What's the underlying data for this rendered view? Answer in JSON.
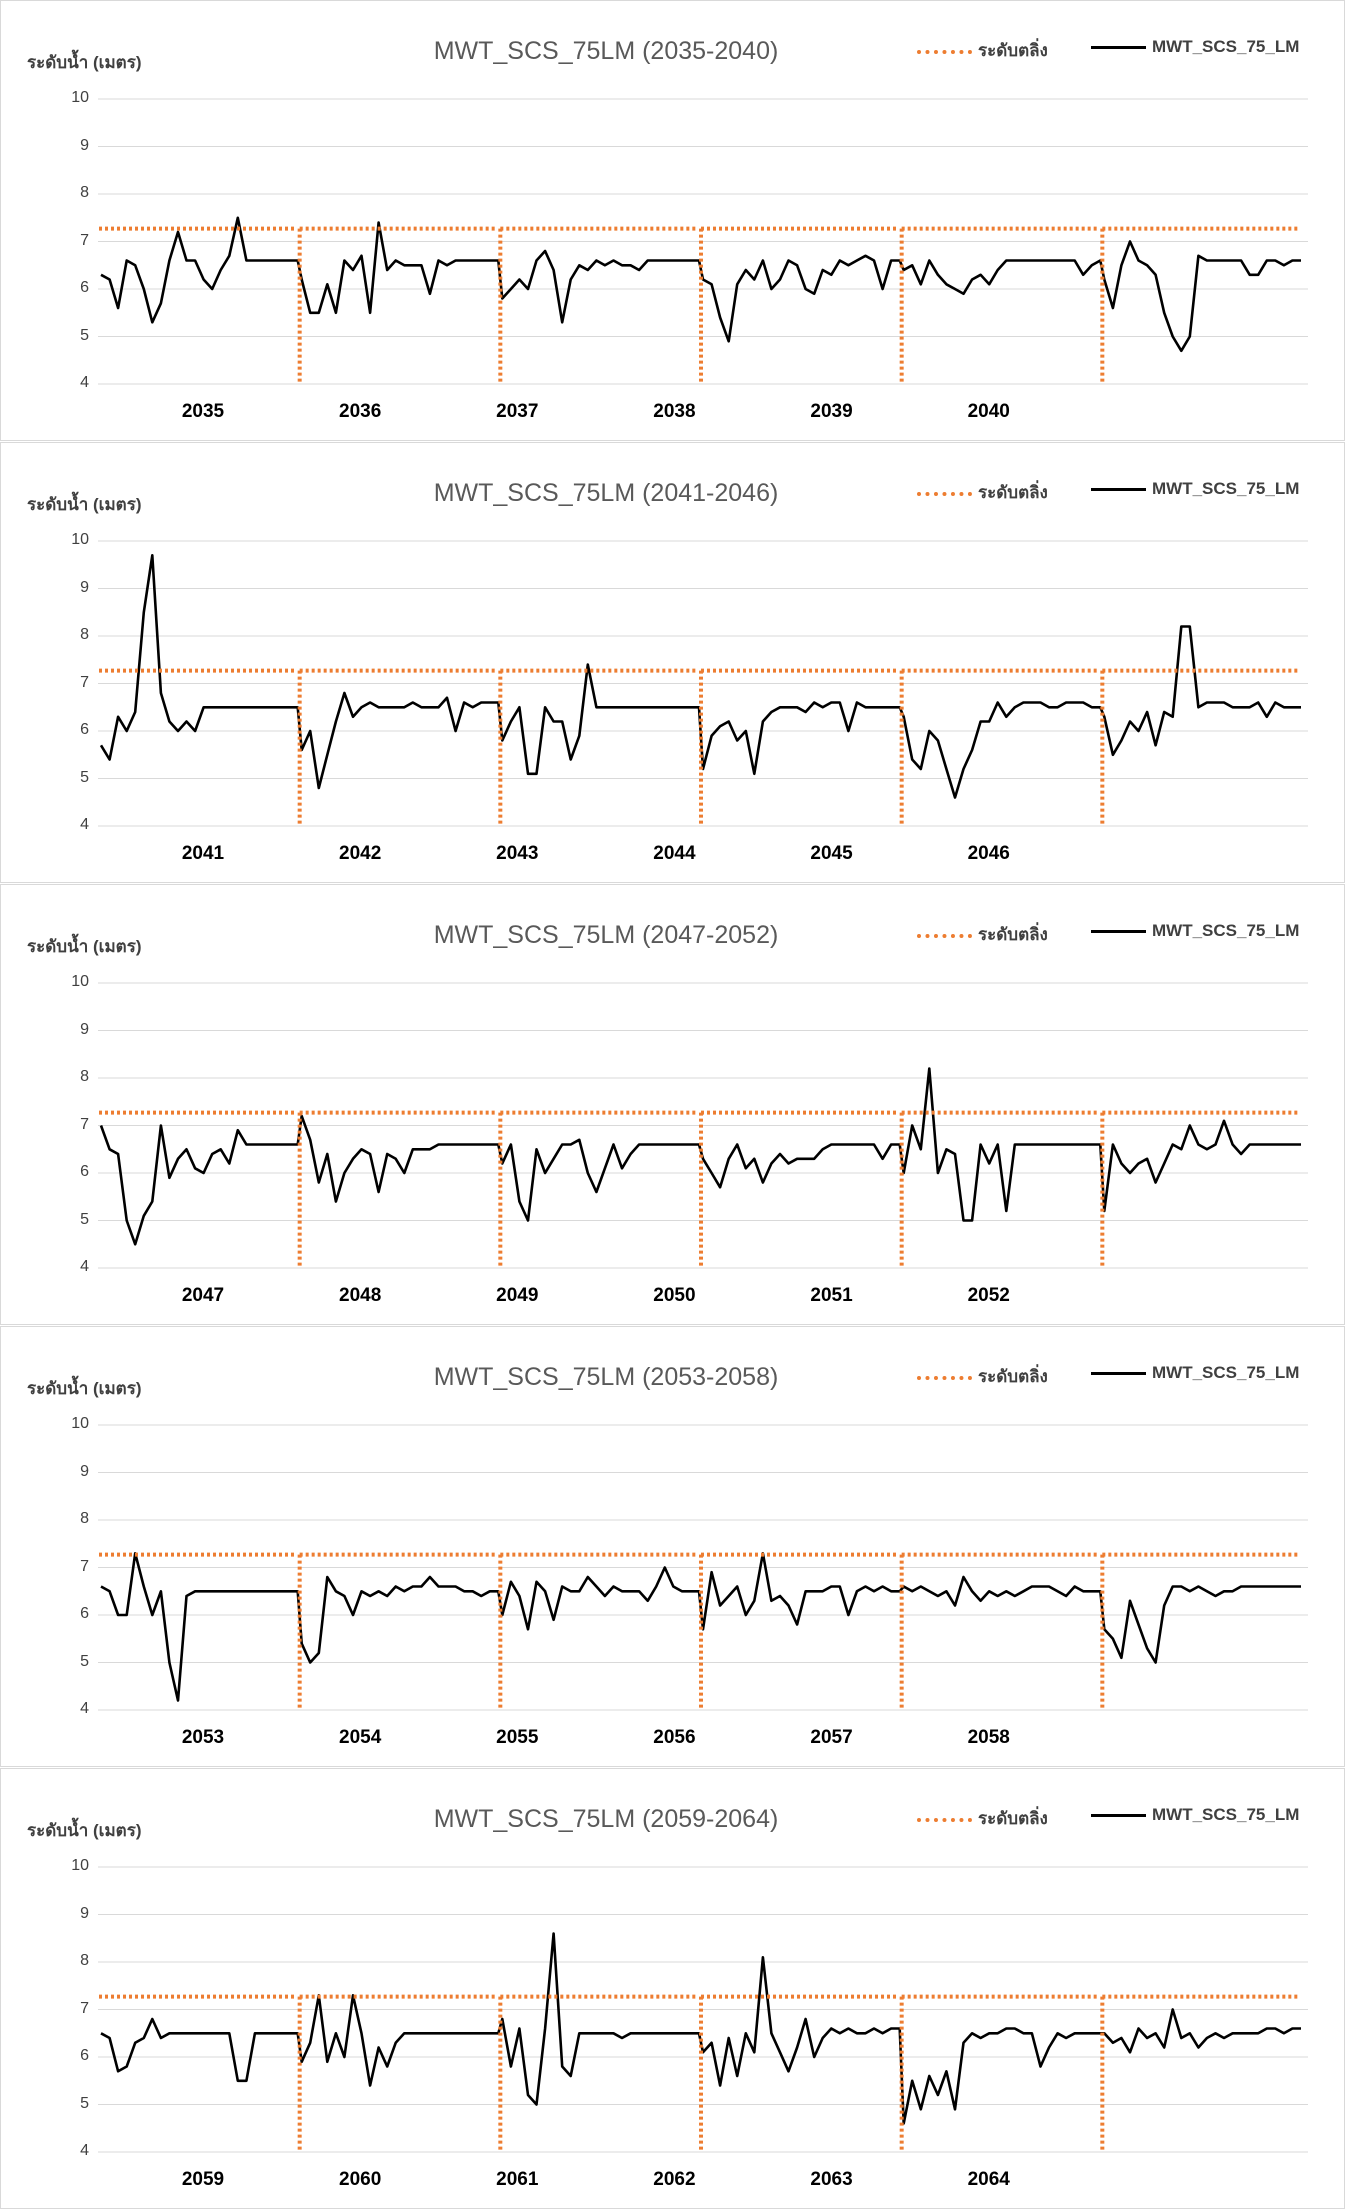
{
  "legend": {
    "threshold": "ระดับตลิ่ง",
    "series": "MWT_SCS_75_LM"
  },
  "ylabel": "ระดับน้ำ (เมตร)",
  "colors": {
    "threshold": "#ed7d31",
    "series": "#000000",
    "grid": "#d9d9d9"
  },
  "chart_data": [
    {
      "type": "line",
      "title": "MWT_SCS_75LM (2035-2040)",
      "ylabel": "ระดับน้ำ (เมตร)",
      "ylim": [
        4,
        10
      ],
      "yticks": [
        4,
        5,
        6,
        7,
        8,
        9,
        10
      ],
      "xtick_labels": [
        "2035",
        "2036",
        "2037",
        "2038",
        "2039",
        "2040"
      ],
      "threshold": 7.27,
      "series": [
        {
          "name": "MWT_SCS_75_LM",
          "values": [
            6.3,
            6.2,
            5.6,
            6.6,
            6.5,
            6.0,
            5.3,
            5.7,
            6.6,
            7.2,
            6.6,
            6.6,
            6.2,
            6.0,
            6.4,
            6.7,
            7.5,
            6.6,
            6.6,
            6.6,
            6.6,
            6.6,
            6.6,
            6.6,
            6.2,
            5.5,
            5.5,
            6.1,
            5.5,
            6.6,
            6.4,
            6.7,
            5.5,
            7.4,
            6.4,
            6.6,
            6.5,
            6.5,
            6.5,
            5.9,
            6.6,
            6.5,
            6.6,
            6.6,
            6.6,
            6.6,
            6.6,
            6.6,
            5.8,
            6.0,
            6.2,
            6.0,
            6.6,
            6.8,
            6.4,
            5.3,
            6.2,
            6.5,
            6.4,
            6.6,
            6.5,
            6.6,
            6.5,
            6.5,
            6.4,
            6.6,
            6.6,
            6.6,
            6.6,
            6.6,
            6.6,
            6.6,
            6.2,
            6.1,
            5.4,
            4.9,
            6.1,
            6.4,
            6.2,
            6.6,
            6.0,
            6.2,
            6.6,
            6.5,
            6.0,
            5.9,
            6.4,
            6.3,
            6.6,
            6.5,
            6.6,
            6.7,
            6.6,
            6.0,
            6.6,
            6.6,
            6.4,
            6.5,
            6.1,
            6.6,
            6.3,
            6.1,
            6.0,
            5.9,
            6.2,
            6.3,
            6.1,
            6.4,
            6.6,
            6.6,
            6.6,
            6.6,
            6.6,
            6.6,
            6.6,
            6.6,
            6.6,
            6.3,
            6.5,
            6.6,
            6.2,
            5.6,
            6.5,
            7.0,
            6.6,
            6.5,
            6.3,
            5.5,
            5.0,
            4.7,
            5.0,
            6.7,
            6.6,
            6.6,
            6.6,
            6.6,
            6.6,
            6.3,
            6.3,
            6.6,
            6.6,
            6.5,
            6.6,
            6.6
          ]
        }
      ]
    },
    {
      "type": "line",
      "title": "MWT_SCS_75LM (2041-2046)",
      "ylabel": "ระดับน้ำ (เมตร)",
      "ylim": [
        4,
        10
      ],
      "yticks": [
        4,
        5,
        6,
        7,
        8,
        9,
        10
      ],
      "xtick_labels": [
        "2041",
        "2042",
        "2043",
        "2044",
        "2045",
        "2046"
      ],
      "threshold": 7.27,
      "series": [
        {
          "name": "MWT_SCS_75_LM",
          "values": [
            5.7,
            5.4,
            6.3,
            6.0,
            6.4,
            8.5,
            9.7,
            6.8,
            6.2,
            6.0,
            6.2,
            6.0,
            6.5,
            6.5,
            6.5,
            6.5,
            6.5,
            6.5,
            6.5,
            6.5,
            6.5,
            6.5,
            6.5,
            6.5,
            5.6,
            6.0,
            4.8,
            5.5,
            6.2,
            6.8,
            6.3,
            6.5,
            6.6,
            6.5,
            6.5,
            6.5,
            6.5,
            6.6,
            6.5,
            6.5,
            6.5,
            6.7,
            6.0,
            6.6,
            6.5,
            6.6,
            6.6,
            6.6,
            5.8,
            6.2,
            6.5,
            5.1,
            5.1,
            6.5,
            6.2,
            6.2,
            5.4,
            5.9,
            7.4,
            6.5,
            6.5,
            6.5,
            6.5,
            6.5,
            6.5,
            6.5,
            6.5,
            6.5,
            6.5,
            6.5,
            6.5,
            6.5,
            5.2,
            5.9,
            6.1,
            6.2,
            5.8,
            6.0,
            5.1,
            6.2,
            6.4,
            6.5,
            6.5,
            6.5,
            6.4,
            6.6,
            6.5,
            6.6,
            6.6,
            6.0,
            6.6,
            6.5,
            6.5,
            6.5,
            6.5,
            6.5,
            6.3,
            5.4,
            5.2,
            6.0,
            5.8,
            5.2,
            4.6,
            5.2,
            5.6,
            6.2,
            6.2,
            6.6,
            6.3,
            6.5,
            6.6,
            6.6,
            6.6,
            6.5,
            6.5,
            6.6,
            6.6,
            6.6,
            6.5,
            6.5,
            6.3,
            5.5,
            5.8,
            6.2,
            6.0,
            6.4,
            5.7,
            6.4,
            6.3,
            8.2,
            8.2,
            6.5,
            6.6,
            6.6,
            6.6,
            6.5,
            6.5,
            6.5,
            6.6,
            6.3,
            6.6,
            6.5,
            6.5,
            6.5
          ]
        }
      ]
    },
    {
      "type": "line",
      "title": "MWT_SCS_75LM (2047-2052)",
      "ylabel": "ระดับน้ำ (เมตร)",
      "ylim": [
        4,
        10
      ],
      "yticks": [
        4,
        5,
        6,
        7,
        8,
        9,
        10
      ],
      "xtick_labels": [
        "2047",
        "2048",
        "2049",
        "2050",
        "2051",
        "2052"
      ],
      "threshold": 7.27,
      "series": [
        {
          "name": "MWT_SCS_75_LM",
          "values": [
            7.0,
            6.5,
            6.4,
            5.0,
            4.5,
            5.1,
            5.4,
            7.0,
            5.9,
            6.3,
            6.5,
            6.1,
            6.0,
            6.4,
            6.5,
            6.2,
            6.9,
            6.6,
            6.6,
            6.6,
            6.6,
            6.6,
            6.6,
            6.6,
            7.2,
            6.7,
            5.8,
            6.4,
            5.4,
            6.0,
            6.3,
            6.5,
            6.4,
            5.6,
            6.4,
            6.3,
            6.0,
            6.5,
            6.5,
            6.5,
            6.6,
            6.6,
            6.6,
            6.6,
            6.6,
            6.6,
            6.6,
            6.6,
            6.2,
            6.6,
            5.4,
            5.0,
            6.5,
            6.0,
            6.3,
            6.6,
            6.6,
            6.7,
            6.0,
            5.6,
            6.1,
            6.6,
            6.1,
            6.4,
            6.6,
            6.6,
            6.6,
            6.6,
            6.6,
            6.6,
            6.6,
            6.6,
            6.3,
            6.0,
            5.7,
            6.3,
            6.6,
            6.1,
            6.3,
            5.8,
            6.2,
            6.4,
            6.2,
            6.3,
            6.3,
            6.3,
            6.5,
            6.6,
            6.6,
            6.6,
            6.6,
            6.6,
            6.6,
            6.3,
            6.6,
            6.6,
            6.0,
            7.0,
            6.5,
            8.2,
            6.0,
            6.5,
            6.4,
            5.0,
            5.0,
            6.6,
            6.2,
            6.6,
            5.2,
            6.6,
            6.6,
            6.6,
            6.6,
            6.6,
            6.6,
            6.6,
            6.6,
            6.6,
            6.6,
            6.6,
            5.2,
            6.6,
            6.2,
            6.0,
            6.2,
            6.3,
            5.8,
            6.2,
            6.6,
            6.5,
            7.0,
            6.6,
            6.5,
            6.6,
            7.1,
            6.6,
            6.4,
            6.6,
            6.6,
            6.6,
            6.6,
            6.6,
            6.6,
            6.6
          ]
        }
      ]
    },
    {
      "type": "line",
      "title": "MWT_SCS_75LM (2053-2058)",
      "ylabel": "ระดับน้ำ (เมตร)",
      "ylim": [
        4,
        10
      ],
      "yticks": [
        4,
        5,
        6,
        7,
        8,
        9,
        10
      ],
      "xtick_labels": [
        "2053",
        "2054",
        "2055",
        "2056",
        "2057",
        "2058"
      ],
      "threshold": 7.27,
      "series": [
        {
          "name": "MWT_SCS_75_LM",
          "values": [
            6.6,
            6.5,
            6.0,
            6.0,
            7.3,
            6.6,
            6.0,
            6.5,
            5.0,
            4.2,
            6.4,
            6.5,
            6.5,
            6.5,
            6.5,
            6.5,
            6.5,
            6.5,
            6.5,
            6.5,
            6.5,
            6.5,
            6.5,
            6.5,
            5.4,
            5.0,
            5.2,
            6.8,
            6.5,
            6.4,
            6.0,
            6.5,
            6.4,
            6.5,
            6.4,
            6.6,
            6.5,
            6.6,
            6.6,
            6.8,
            6.6,
            6.6,
            6.6,
            6.5,
            6.5,
            6.4,
            6.5,
            6.5,
            6.0,
            6.7,
            6.4,
            5.7,
            6.7,
            6.5,
            5.9,
            6.6,
            6.5,
            6.5,
            6.8,
            6.6,
            6.4,
            6.6,
            6.5,
            6.5,
            6.5,
            6.3,
            6.6,
            7.0,
            6.6,
            6.5,
            6.5,
            6.5,
            5.7,
            6.9,
            6.2,
            6.4,
            6.6,
            6.0,
            6.3,
            7.3,
            6.3,
            6.4,
            6.2,
            5.8,
            6.5,
            6.5,
            6.5,
            6.6,
            6.6,
            6.0,
            6.5,
            6.6,
            6.5,
            6.6,
            6.5,
            6.5,
            6.6,
            6.5,
            6.6,
            6.5,
            6.4,
            6.5,
            6.2,
            6.8,
            6.5,
            6.3,
            6.5,
            6.4,
            6.5,
            6.4,
            6.5,
            6.6,
            6.6,
            6.6,
            6.5,
            6.4,
            6.6,
            6.5,
            6.5,
            6.5,
            5.7,
            5.5,
            5.1,
            6.3,
            5.8,
            5.3,
            5.0,
            6.2,
            6.6,
            6.6,
            6.5,
            6.6,
            6.5,
            6.4,
            6.5,
            6.5,
            6.6,
            6.6,
            6.6,
            6.6,
            6.6,
            6.6,
            6.6,
            6.6
          ]
        }
      ]
    },
    {
      "type": "line",
      "title": "MWT_SCS_75LM (2059-2064)",
      "ylabel": "ระดับน้ำ (เมตร)",
      "ylim": [
        4,
        10
      ],
      "yticks": [
        4,
        5,
        6,
        7,
        8,
        9,
        10
      ],
      "xtick_labels": [
        "2059",
        "2060",
        "2061",
        "2062",
        "2063",
        "2064"
      ],
      "threshold": 7.27,
      "series": [
        {
          "name": "MWT_SCS_75_LM",
          "values": [
            6.5,
            6.4,
            5.7,
            5.8,
            6.3,
            6.4,
            6.8,
            6.4,
            6.5,
            6.5,
            6.5,
            6.5,
            6.5,
            6.5,
            6.5,
            6.5,
            5.5,
            5.5,
            6.5,
            6.5,
            6.5,
            6.5,
            6.5,
            6.5,
            5.9,
            6.3,
            7.3,
            5.9,
            6.5,
            6.0,
            7.3,
            6.5,
            5.4,
            6.2,
            5.8,
            6.3,
            6.5,
            6.5,
            6.5,
            6.5,
            6.5,
            6.5,
            6.5,
            6.5,
            6.5,
            6.5,
            6.5,
            6.5,
            6.8,
            5.8,
            6.6,
            5.2,
            5.0,
            6.6,
            8.6,
            5.8,
            5.6,
            6.5,
            6.5,
            6.5,
            6.5,
            6.5,
            6.4,
            6.5,
            6.5,
            6.5,
            6.5,
            6.5,
            6.5,
            6.5,
            6.5,
            6.5,
            6.1,
            6.3,
            5.4,
            6.4,
            5.6,
            6.5,
            6.1,
            8.1,
            6.5,
            6.1,
            5.7,
            6.2,
            6.8,
            6.0,
            6.4,
            6.6,
            6.5,
            6.6,
            6.5,
            6.5,
            6.6,
            6.5,
            6.6,
            6.6,
            4.6,
            5.5,
            4.9,
            5.6,
            5.2,
            5.7,
            4.9,
            6.3,
            6.5,
            6.4,
            6.5,
            6.5,
            6.6,
            6.6,
            6.5,
            6.5,
            5.8,
            6.2,
            6.5,
            6.4,
            6.5,
            6.5,
            6.5,
            6.5,
            6.5,
            6.3,
            6.4,
            6.1,
            6.6,
            6.4,
            6.5,
            6.2,
            7.0,
            6.4,
            6.5,
            6.2,
            6.4,
            6.5,
            6.4,
            6.5,
            6.5,
            6.5,
            6.5,
            6.6,
            6.6,
            6.5,
            6.6,
            6.6
          ]
        }
      ]
    }
  ]
}
